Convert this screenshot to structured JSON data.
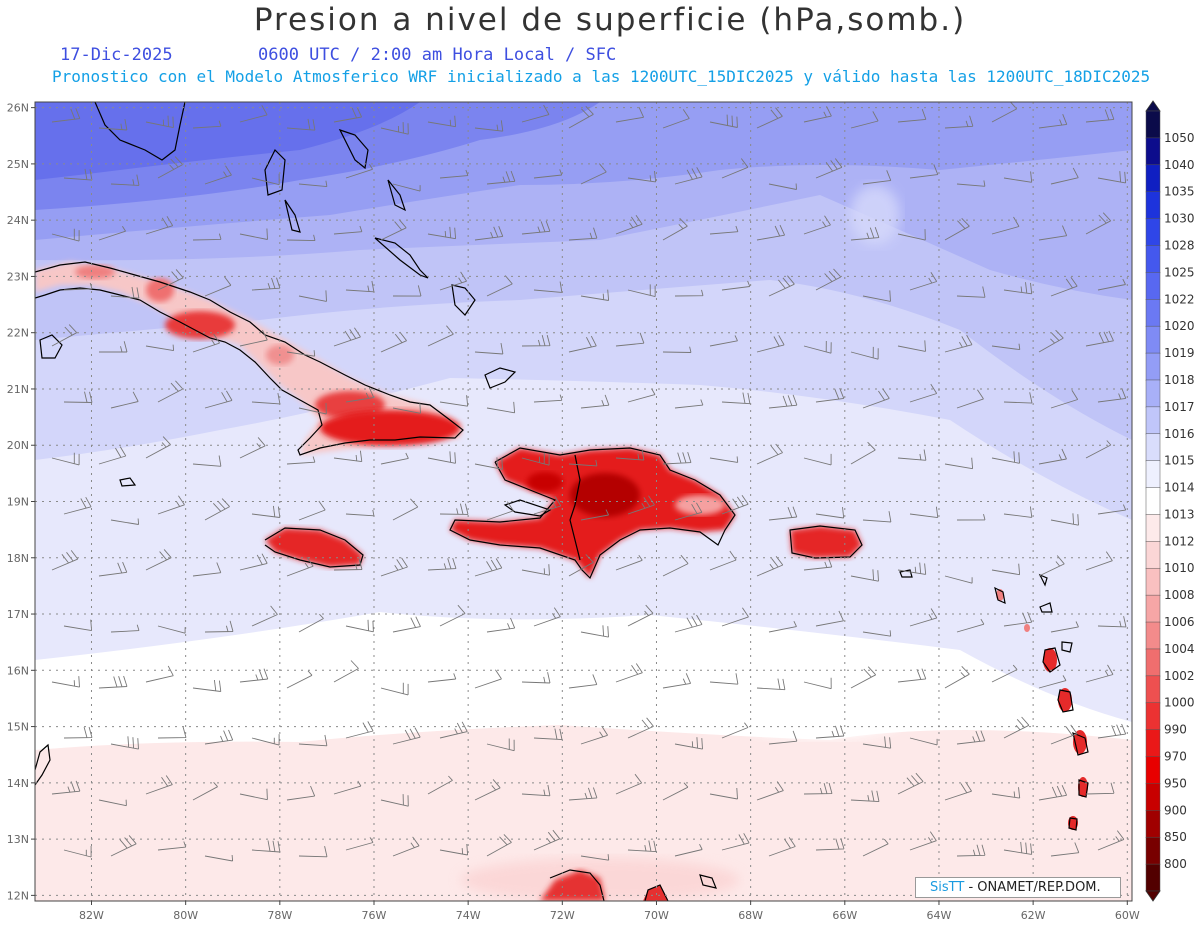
{
  "header": {
    "title": "Presion a nivel de superficie (hPa,somb.)",
    "date": "17-Dic-2025",
    "time": "0600 UTC / 2:00 am Hora Local / SFC",
    "description": "Pronostico con el Modelo Atmosferico WRF inicializado a las 1200UTC_15DIC2025 y válido hasta las  1200UTC_18DIC2025"
  },
  "map": {
    "lat_labels": [
      "26N",
      "25N",
      "24N",
      "23N",
      "22N",
      "21N",
      "20N",
      "19N",
      "18N",
      "17N",
      "16N",
      "15N",
      "14N",
      "13N",
      "12N"
    ],
    "lon_labels": [
      "82W",
      "80W",
      "78W",
      "76W",
      "74W",
      "72W",
      "70W",
      "68W",
      "66W",
      "64W",
      "62W",
      "60W"
    ],
    "lat_range": [
      11.9,
      26.1
    ],
    "lon_range": [
      -83.2,
      -59.9
    ],
    "grid": "dotted"
  },
  "colorbar": {
    "unit": "hPa",
    "levels": [
      {
        "label": "1050",
        "color": "#0b0b4a"
      },
      {
        "label": "1040",
        "color": "#0c0c8c"
      },
      {
        "label": "1035",
        "color": "#0f1fc2"
      },
      {
        "label": "1030",
        "color": "#1d33dc"
      },
      {
        "label": "1028",
        "color": "#2f46e8"
      },
      {
        "label": "1025",
        "color": "#4458ee"
      },
      {
        "label": "1022",
        "color": "#5868f1"
      },
      {
        "label": "1020",
        "color": "#6b79f3"
      },
      {
        "label": "1019",
        "color": "#7f8bf5"
      },
      {
        "label": "1018",
        "color": "#939df6"
      },
      {
        "label": "1017",
        "color": "#a8b0f8"
      },
      {
        "label": "1016",
        "color": "#c0c6fa"
      },
      {
        "label": "1015",
        "color": "#d9ddfc"
      },
      {
        "label": "1014",
        "color": "#eef0fe"
      },
      {
        "label": "1013",
        "color": "#ffffff"
      },
      {
        "label": "1012",
        "color": "#fdeaea"
      },
      {
        "label": "1010",
        "color": "#fbd6d6"
      },
      {
        "label": "1008",
        "color": "#f9c0c0"
      },
      {
        "label": "1006",
        "color": "#f6a6a6"
      },
      {
        "label": "1004",
        "color": "#f38b8b"
      },
      {
        "label": "1002",
        "color": "#f06e6e"
      },
      {
        "label": "1000",
        "color": "#ee5050"
      },
      {
        "label": "990",
        "color": "#ec3232"
      },
      {
        "label": "970",
        "color": "#ea1818"
      },
      {
        "label": "950",
        "color": "#e80000"
      },
      {
        "label": "900",
        "color": "#c80000"
      },
      {
        "label": "850",
        "color": "#a00000"
      },
      {
        "label": "800",
        "color": "#780000"
      }
    ],
    "bottom_color": "#520000"
  },
  "credit": {
    "brand": "SisTT",
    "text": "- ONAMET/REP.DOM."
  }
}
